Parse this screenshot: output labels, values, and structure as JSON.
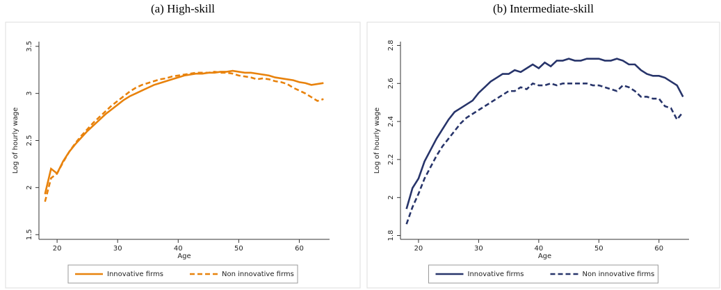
{
  "chart_data": [
    {
      "type": "line",
      "title": "(a)  High-skill",
      "xlabel": "Age",
      "ylabel": "Log of hourly wage",
      "x": [
        18,
        19,
        20,
        21,
        22,
        23,
        24,
        25,
        26,
        27,
        28,
        29,
        30,
        31,
        32,
        33,
        34,
        35,
        36,
        37,
        38,
        39,
        40,
        41,
        42,
        43,
        44,
        45,
        46,
        47,
        48,
        49,
        50,
        51,
        52,
        53,
        54,
        55,
        56,
        57,
        58,
        59,
        60,
        61,
        62,
        63,
        64
      ],
      "xlim": [
        17,
        65
      ],
      "xticks": [
        20,
        30,
        40,
        50,
        60
      ],
      "ylim": [
        1.45,
        3.55
      ],
      "yticks": [
        1.5,
        2,
        2.5,
        3,
        3.5
      ],
      "grid": false,
      "legend": "bottom",
      "series": [
        {
          "name": "Innovative firms",
          "color": "#e8820c",
          "style": "solid",
          "values": [
            1.93,
            2.2,
            2.15,
            2.28,
            2.38,
            2.46,
            2.53,
            2.6,
            2.66,
            2.72,
            2.78,
            2.83,
            2.88,
            2.93,
            2.97,
            3.0,
            3.03,
            3.06,
            3.09,
            3.11,
            3.13,
            3.15,
            3.17,
            3.19,
            3.2,
            3.21,
            3.21,
            3.22,
            3.22,
            3.23,
            3.23,
            3.24,
            3.23,
            3.22,
            3.22,
            3.21,
            3.2,
            3.19,
            3.17,
            3.16,
            3.15,
            3.14,
            3.12,
            3.11,
            3.09,
            3.1,
            3.11
          ]
        },
        {
          "name": "Non innovative firms",
          "color": "#e8820c",
          "style": "dashed",
          "values": [
            1.85,
            2.1,
            2.15,
            2.27,
            2.38,
            2.47,
            2.55,
            2.62,
            2.69,
            2.75,
            2.81,
            2.87,
            2.92,
            2.97,
            3.02,
            3.06,
            3.09,
            3.11,
            3.13,
            3.15,
            3.16,
            3.18,
            3.19,
            3.2,
            3.21,
            3.22,
            3.22,
            3.22,
            3.23,
            3.22,
            3.22,
            3.21,
            3.19,
            3.18,
            3.17,
            3.15,
            3.16,
            3.15,
            3.13,
            3.12,
            3.1,
            3.06,
            3.03,
            3.0,
            2.96,
            2.92,
            2.94
          ]
        }
      ]
    },
    {
      "type": "line",
      "title": "(b)  Intermediate-skill",
      "xlabel": "Age",
      "ylabel": "Log of hourly wage",
      "x": [
        18,
        19,
        20,
        21,
        22,
        23,
        24,
        25,
        26,
        27,
        28,
        29,
        30,
        31,
        32,
        33,
        34,
        35,
        36,
        37,
        38,
        39,
        40,
        41,
        42,
        43,
        44,
        45,
        46,
        47,
        48,
        49,
        50,
        51,
        52,
        53,
        54,
        55,
        56,
        57,
        58,
        59,
        60,
        61,
        62,
        63,
        64
      ],
      "xlim": [
        17,
        65
      ],
      "xticks": [
        20,
        30,
        40,
        50,
        60
      ],
      "ylim": [
        1.78,
        2.82
      ],
      "yticks": [
        1.8,
        2,
        2.2,
        2.4,
        2.6,
        2.8
      ],
      "grid": false,
      "legend": "bottom",
      "series": [
        {
          "name": "Innovative firms",
          "color": "#27346a",
          "style": "solid",
          "values": [
            1.94,
            2.05,
            2.1,
            2.19,
            2.25,
            2.31,
            2.36,
            2.41,
            2.45,
            2.47,
            2.49,
            2.51,
            2.55,
            2.58,
            2.61,
            2.63,
            2.65,
            2.65,
            2.67,
            2.66,
            2.68,
            2.7,
            2.68,
            2.71,
            2.69,
            2.72,
            2.72,
            2.73,
            2.72,
            2.72,
            2.73,
            2.73,
            2.73,
            2.72,
            2.72,
            2.73,
            2.72,
            2.7,
            2.7,
            2.67,
            2.65,
            2.64,
            2.64,
            2.63,
            2.61,
            2.59,
            2.53
          ]
        },
        {
          "name": "Non innovative firms",
          "color": "#27346a",
          "style": "dashed",
          "values": [
            1.86,
            1.95,
            2.02,
            2.1,
            2.16,
            2.22,
            2.27,
            2.31,
            2.35,
            2.39,
            2.42,
            2.44,
            2.46,
            2.48,
            2.5,
            2.52,
            2.54,
            2.56,
            2.56,
            2.58,
            2.57,
            2.6,
            2.59,
            2.59,
            2.6,
            2.59,
            2.6,
            2.6,
            2.6,
            2.6,
            2.6,
            2.59,
            2.59,
            2.58,
            2.57,
            2.56,
            2.59,
            2.58,
            2.56,
            2.53,
            2.53,
            2.52,
            2.52,
            2.48,
            2.47,
            2.41,
            2.45
          ]
        }
      ]
    }
  ]
}
